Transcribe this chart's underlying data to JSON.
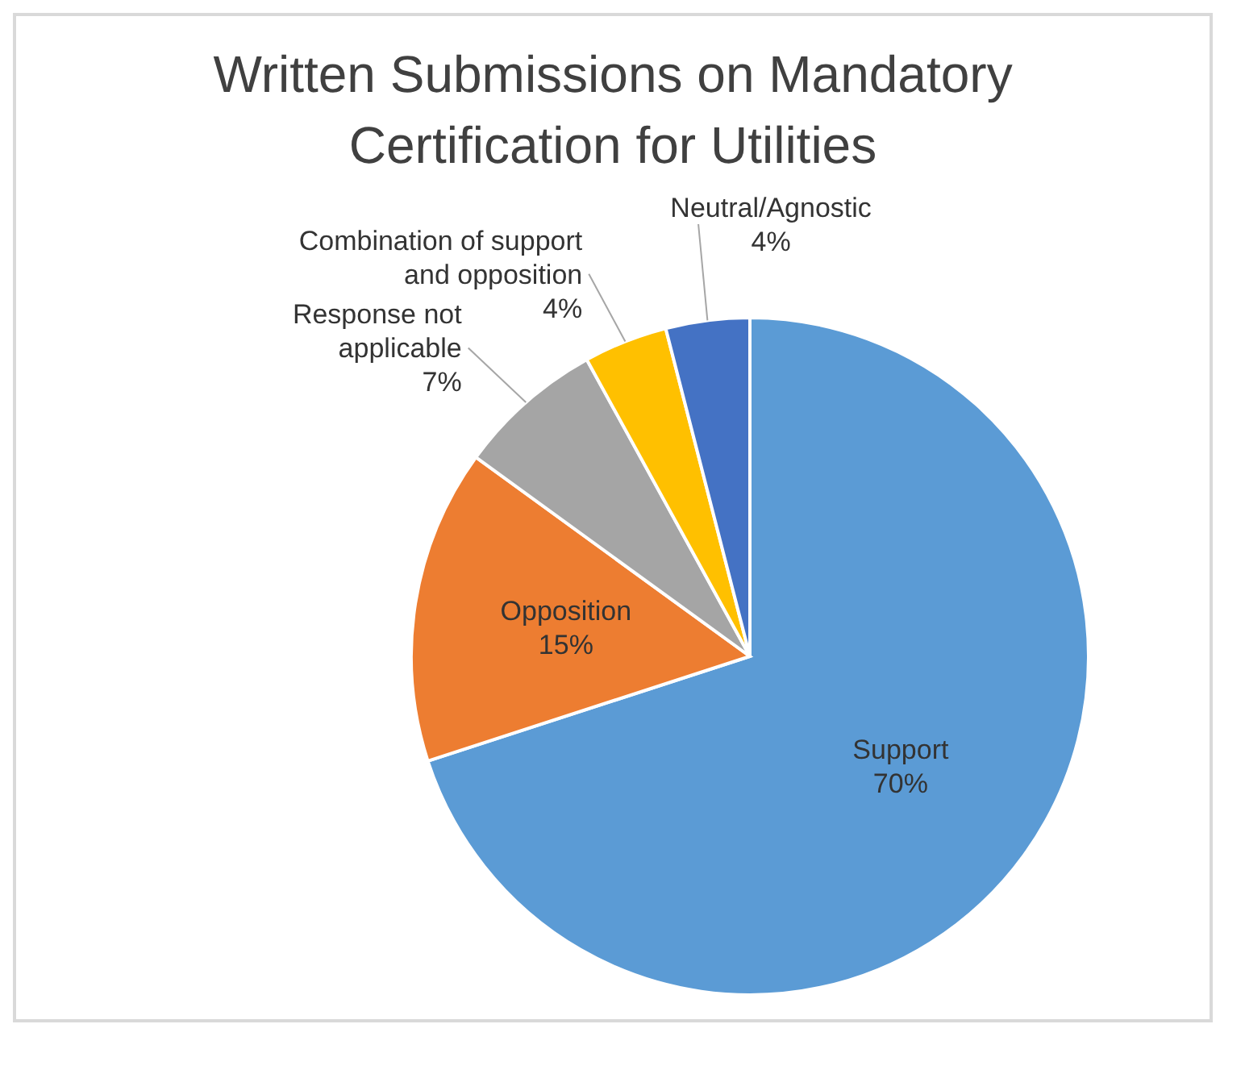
{
  "chart_data": {
    "type": "pie",
    "title": "Written Submissions on Mandatory Certification for Utilities",
    "categories": [
      "Support",
      "Opposition",
      "Response not applicable",
      "Combination of support and opposition",
      "Neutral/Agnostic"
    ],
    "values": [
      70,
      15,
      7,
      4,
      4
    ],
    "colors": [
      "#5b9bd5",
      "#ed7d31",
      "#a5a5a5",
      "#ffc000",
      "#4472c4"
    ],
    "value_labels": [
      "70%",
      "15%",
      "7%",
      "4%",
      "4%"
    ]
  }
}
